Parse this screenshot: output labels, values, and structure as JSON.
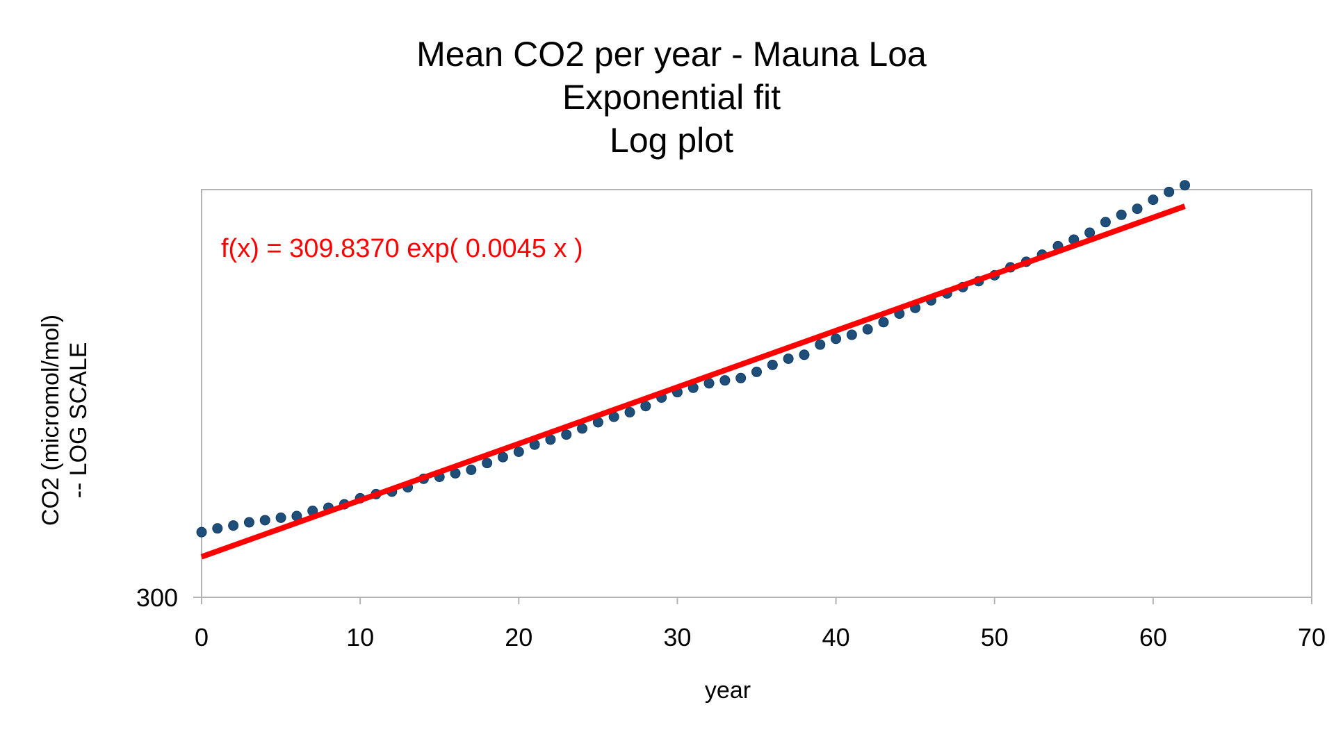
{
  "chart_data": {
    "type": "scatter",
    "title_lines": [
      "Mean CO2 per year - Mauna Loa",
      "Exponential fit",
      "Log plot"
    ],
    "xlabel": "year",
    "ylabel_lines": [
      "CO2 (micromol/mol)",
      "-- LOG SCALE"
    ],
    "xlim": [
      0,
      70
    ],
    "x_ticks": [
      "0",
      "10",
      "20",
      "30",
      "40",
      "50",
      "60",
      "70"
    ],
    "y_scale": "log",
    "ylim": [
      300,
      415
    ],
    "y_ticks": [
      "300"
    ],
    "grid": false,
    "series": [
      {
        "marker": "circle",
        "color": "#1f4e79",
        "x": [
          0,
          1,
          2,
          3,
          4,
          5,
          6,
          7,
          8,
          9,
          10,
          11,
          12,
          13,
          14,
          15,
          16,
          17,
          18,
          19,
          20,
          21,
          22,
          23,
          24,
          25,
          26,
          27,
          28,
          29,
          30,
          31,
          32,
          33,
          34,
          35,
          36,
          37,
          38,
          39,
          40,
          41,
          42,
          43,
          44,
          45,
          46,
          47,
          48,
          49,
          50,
          51,
          52,
          53,
          54,
          55,
          56,
          57,
          58,
          59,
          60,
          61,
          62
        ],
        "y": [
          315.97,
          316.91,
          317.64,
          318.45,
          318.99,
          319.62,
          320.04,
          321.37,
          322.18,
          323.05,
          324.62,
          325.68,
          326.32,
          327.46,
          329.68,
          330.19,
          331.13,
          332.03,
          333.84,
          335.41,
          336.84,
          338.76,
          340.12,
          341.48,
          343.15,
          344.85,
          346.35,
          347.61,
          349.31,
          351.69,
          353.2,
          354.45,
          355.7,
          356.54,
          357.21,
          358.96,
          360.97,
          362.74,
          363.88,
          366.84,
          368.54,
          369.71,
          371.32,
          373.45,
          375.98,
          377.7,
          379.98,
          382.09,
          384.02,
          385.83,
          387.64,
          390.1,
          391.85,
          394.06,
          396.74,
          398.81,
          401.01,
          404.41,
          406.76,
          408.72,
          411.66,
          414.24,
          416.45
        ]
      }
    ],
    "fit": {
      "label": "f(x) = 309.8370 exp( 0.0045 x )",
      "a": 309.837,
      "b": 0.0045,
      "color": "#ff0000",
      "x_range": [
        0,
        62
      ]
    }
  }
}
